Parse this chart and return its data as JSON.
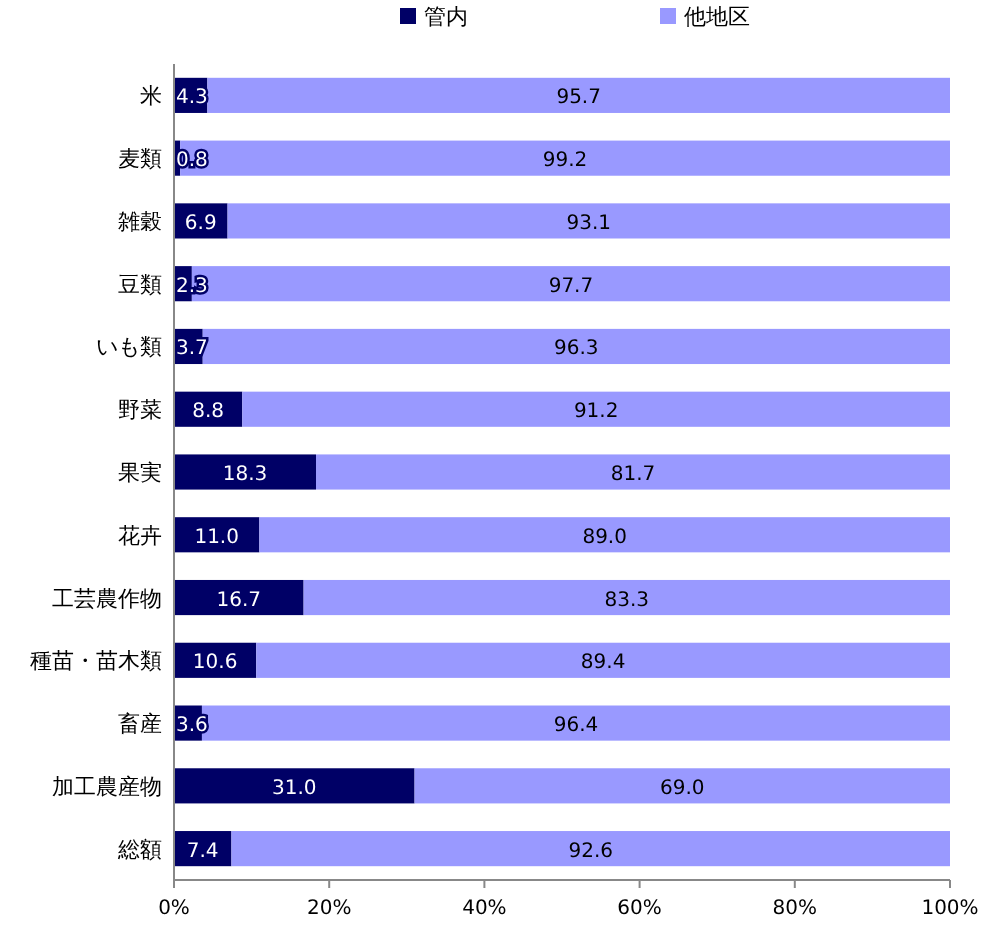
{
  "chart_data": {
    "type": "bar",
    "orientation": "horizontal",
    "stacked": true,
    "legend": "top",
    "categories": [
      "米",
      "麦類",
      "雑穀",
      "豆類",
      "いも類",
      "野菜",
      "果実",
      "花卉",
      "工芸農作物",
      "種苗・苗木類",
      "畜産",
      "加工農産物",
      "総額"
    ],
    "series": [
      {
        "name": "管内",
        "color": "#000066",
        "values": [
          4.3,
          0.8,
          6.9,
          2.3,
          3.7,
          8.8,
          18.3,
          11.0,
          16.7,
          10.6,
          3.6,
          31.0,
          7.4
        ],
        "value_labels": [
          "4.3",
          "0.8",
          "6.9",
          "2.3",
          "3.7",
          "8.8",
          "18.3",
          "11.0",
          "16.7",
          "10.6",
          "3.6",
          "31.0",
          "7.4"
        ]
      },
      {
        "name": "他地区",
        "color": "#9999ff",
        "values": [
          95.7,
          99.2,
          93.1,
          97.7,
          96.3,
          91.2,
          81.7,
          89.0,
          83.3,
          89.4,
          96.4,
          69.0,
          92.6
        ],
        "value_labels": [
          "95.7",
          "99.2",
          "93.1",
          "97.7",
          "96.3",
          "91.2",
          "81.7",
          "89.0",
          "83.3",
          "89.4",
          "96.4",
          "69.0",
          "92.6"
        ]
      }
    ],
    "xlim": [
      0,
      100
    ],
    "xticks": [
      {
        "value": 0,
        "label": "0%"
      },
      {
        "value": 20,
        "label": "20%"
      },
      {
        "value": 40,
        "label": "40%"
      },
      {
        "value": 60,
        "label": "60%"
      },
      {
        "value": 80,
        "label": "80%"
      },
      {
        "value": 100,
        "label": "100%"
      }
    ]
  }
}
